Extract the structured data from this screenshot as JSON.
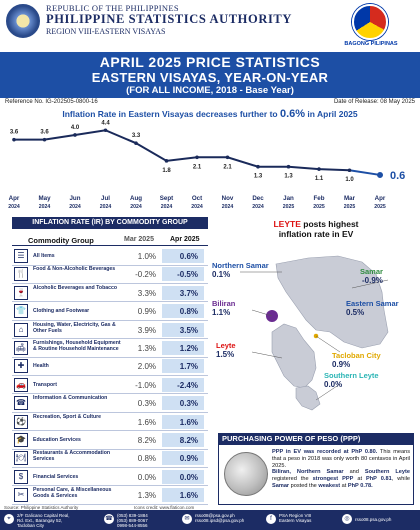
{
  "header": {
    "republic": "REPUBLIC OF THE PHILIPPINES",
    "agency": "PHILIPPINE STATISTICS AUTHORITY",
    "region": "REGION VIII-EASTERN VISAYAS",
    "bagong": "BAGONG PILIPINAS"
  },
  "banner": {
    "line1": "APRIL 2025 PRICE STATISTICS",
    "line2": "EASTERN VISAYAS, YEAR-ON-YEAR",
    "line3": "(FOR ALL INCOME, 2018 - Base Year)"
  },
  "ref": {
    "number": "Reference No. IG-202505-0800-16",
    "release": "Date of Release: 08 May 2025"
  },
  "trend_title": {
    "prefix": "Inflation Rate in Eastern Visayas  decreases further to ",
    "value": "0.6%",
    "suffix": " in April 2025"
  },
  "chart_data": {
    "type": "line",
    "title": "Inflation Rate in Eastern Visayas decreases further to 0.6% in April 2025",
    "categories": [
      [
        "Apr",
        "2024"
      ],
      [
        "May",
        "2024"
      ],
      [
        "Jun",
        "2024"
      ],
      [
        "Jul",
        "2024"
      ],
      [
        "Aug",
        "2024"
      ],
      [
        "Sept",
        "2024"
      ],
      [
        "Oct",
        "2024"
      ],
      [
        "Nov",
        "2024"
      ],
      [
        "Dec",
        "2024"
      ],
      [
        "Jan",
        "2025"
      ],
      [
        "Feb",
        "2025"
      ],
      [
        "Mar",
        "2025"
      ],
      [
        "Apr",
        "2025"
      ]
    ],
    "series": [
      {
        "values": [
          3.6,
          3.6,
          4.0,
          4.4,
          3.3,
          1.8,
          2.1,
          2.1,
          1.3,
          1.3,
          1.1,
          1.0,
          0.6
        ]
      }
    ],
    "data_labels": [
      "3.6",
      "3.6",
      "4.0",
      "4.4",
      "3.3",
      "1.8",
      "2.1",
      "2.1",
      "1.3",
      "1.3",
      "1.1",
      "1.0",
      "0.6"
    ],
    "ylim": [
      0,
      5
    ],
    "color": "#1a2a5a",
    "highlight_color": "#1d4fa5",
    "grid": false
  },
  "table": {
    "title": "INFLATION RATE (IR) BY COMMODITY GROUP",
    "col_group": "Commodity Group",
    "col_mar": "Mar 2025",
    "col_apr": "Apr 2025",
    "rows": [
      {
        "icon": "all-items-icon",
        "glyph": "☰",
        "label": "All Items",
        "mar": "1.0%",
        "apr": "0.6%"
      },
      {
        "icon": "food-icon",
        "glyph": "🍴",
        "label": "Food & Non-Alcoholic Beverages",
        "mar": "-0.2%",
        "apr": "-0.5%"
      },
      {
        "icon": "alcohol-icon",
        "glyph": "🍷",
        "label": "Alcoholic Beverages and Tobacco",
        "mar": "3.3%",
        "apr": "3.7%"
      },
      {
        "icon": "clothing-icon",
        "glyph": "👕",
        "label": "Clothing and Footwear",
        "mar": "0.9%",
        "apr": "0.8%"
      },
      {
        "icon": "housing-icon",
        "glyph": "⌂",
        "label": "Housing, Water, Electricity, Gas & Other Fuels",
        "mar": "3.9%",
        "apr": "3.5%"
      },
      {
        "icon": "furnishings-icon",
        "glyph": "🛋",
        "label": "Furnishings, Household Equipment & Routine Household Maintenance",
        "mar": "1.3%",
        "apr": "1.2%"
      },
      {
        "icon": "health-icon",
        "glyph": "✚",
        "label": "Health",
        "mar": "2.0%",
        "apr": "1.7%"
      },
      {
        "icon": "transport-icon",
        "glyph": "🚗",
        "label": "Transport",
        "mar": "-1.0%",
        "apr": "-2.4%"
      },
      {
        "icon": "ict-icon",
        "glyph": "☎",
        "label": "Information & Communication",
        "mar": "0.3%",
        "apr": "0.3%"
      },
      {
        "icon": "recreation-icon",
        "glyph": "⚽",
        "label": "Recreation, Sport & Culture",
        "mar": "1.6%",
        "apr": "1.6%"
      },
      {
        "icon": "education-icon",
        "glyph": "🎓",
        "label": "Education Services",
        "mar": "8.2%",
        "apr": "8.2%"
      },
      {
        "icon": "restaurant-icon",
        "glyph": "🍽",
        "label": "Restaurants & Accommodation Services",
        "mar": "0.8%",
        "apr": "0.9%"
      },
      {
        "icon": "financial-icon",
        "glyph": "$",
        "label": "Financial Services",
        "mar": "0.0%",
        "apr": "0.0%"
      },
      {
        "icon": "personal-care-icon",
        "glyph": "✂",
        "label": "Personal Care, & Miscellaneous Goods & Services",
        "mar": "1.3%",
        "apr": "1.6%"
      }
    ]
  },
  "map": {
    "title_province": "LEYTE",
    "title_rest": " posts highest",
    "title_line2": "inflation rate in EV",
    "provinces": [
      {
        "name": "Northern Samar",
        "value": "0.1%",
        "color": "#1d4fa5"
      },
      {
        "name": "Samar",
        "value": "-0.9%",
        "color": "#2e8b3e"
      },
      {
        "name": "Eastern Samar",
        "value": "0.5%",
        "color": "#1d4fa5"
      },
      {
        "name": "Biliran",
        "value": "1.1%",
        "color": "#6a2c91"
      },
      {
        "name": "Tacloban City",
        "value": "0.9%",
        "color": "#e0a800"
      },
      {
        "name": "Leyte",
        "value": "1.5%",
        "color": "#d11"
      },
      {
        "name": "Southern Leyte",
        "value": "0.0%",
        "color": "#2bb5b5"
      }
    ]
  },
  "ppp": {
    "title": "PURCHASING POWER OF PESO (PPP)",
    "p1a": "PPP in EV was recorded at PhP 0.80.",
    "p1b": " This means that a peso in 2018 was only worth 80 centavos in April 2025.",
    "p2a": "Biliran, Northern Samar",
    "p2b": " and ",
    "p2c": "Southern Leyte",
    "p2d": " registered the ",
    "p2e": "strongest PPP",
    "p2f": " at ",
    "p2g": "PhP 0.81",
    "p2h": ", while ",
    "p2i": "Samar",
    "p2j": " posted the ",
    "p2k": "weakest",
    "p2l": " at ",
    "p2m": "PhP 0.78."
  },
  "source": "Source: Philippine Statistics Authority",
  "icons_credit": "Icons credit: www.flaticon.com",
  "footer": {
    "address": "2/F Galicano Capital Real, Brgy. 52, Tacloban City",
    "address1": "2/F Galicano Capital Real,",
    "address2": "Rd. Ext., Barangay 52,",
    "address3": "Tacloban City",
    "phone1": "(053) 839-1884",
    "phone2": "(053) 889-0067",
    "phone3": "0998-544-8556",
    "email1": "rsso08@psa.gov.ph",
    "email2": "rsso08.ipsd@psa.gov.ph",
    "fb1": "PSA Region VIII",
    "fb2": "Eastern Visayas",
    "web": "rsso08.psa.gov.ph"
  }
}
